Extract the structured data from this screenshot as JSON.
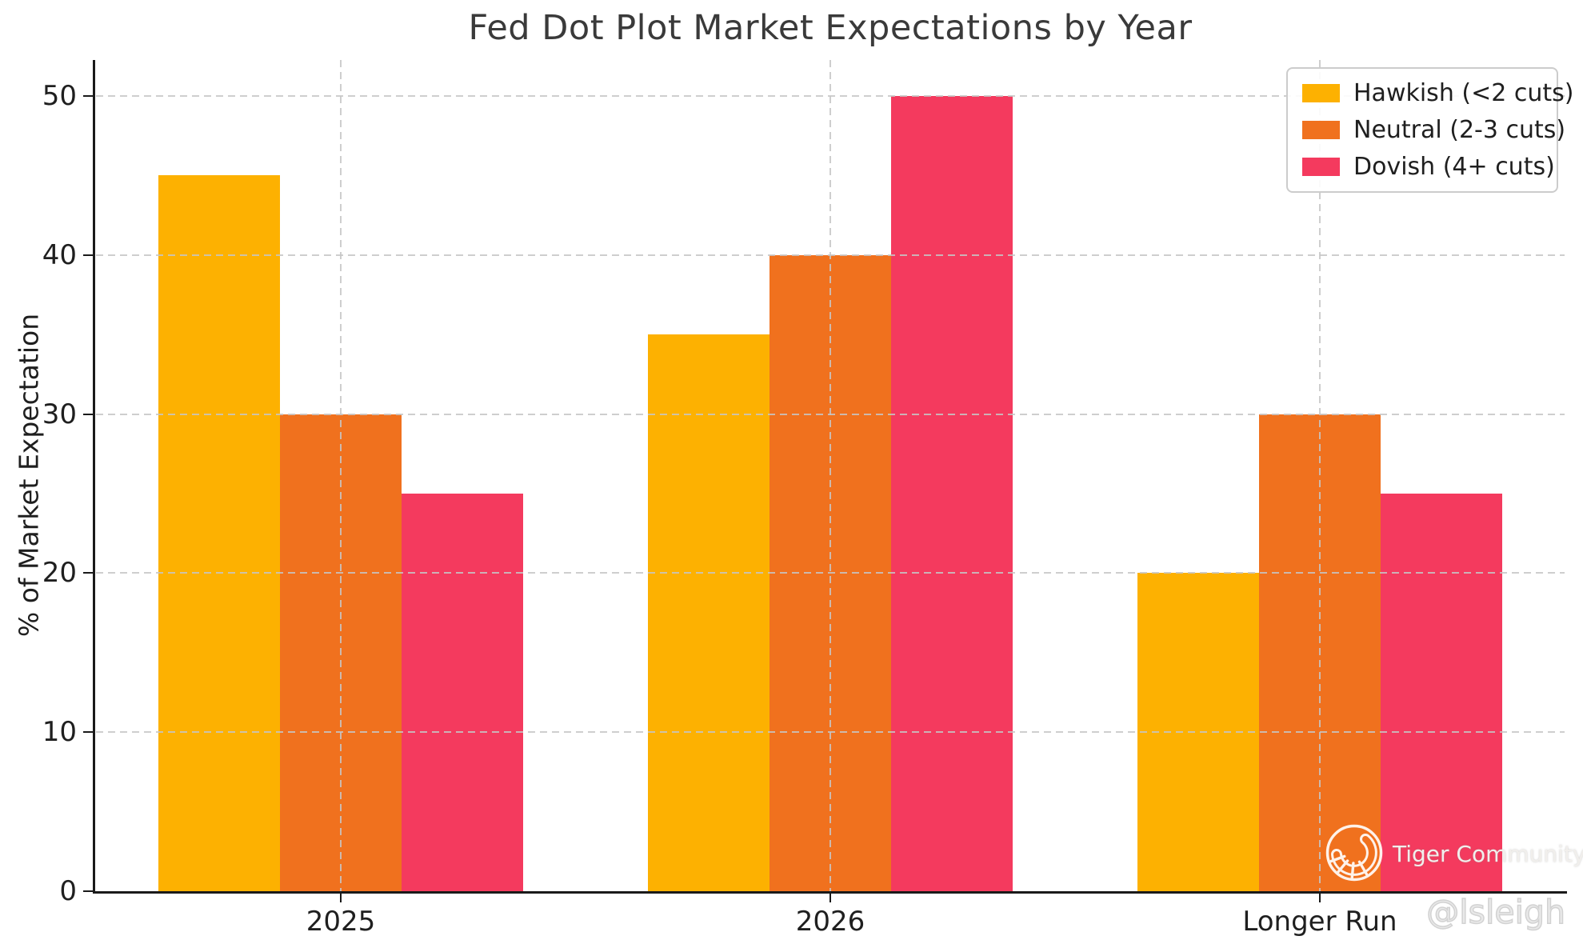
{
  "title": "Fed Dot Plot Market Expectations by Year",
  "axis": {
    "ylabel": "% of Market Expectation"
  },
  "legend": {
    "items": [
      {
        "label": "Hawkish (<2 cuts)",
        "color": "#FDB101"
      },
      {
        "label": "Neutral (2-3 cuts)",
        "color": "#F0711E"
      },
      {
        "label": "Dovish (4+ cuts)",
        "color": "#F43A5E"
      }
    ]
  },
  "watermark": {
    "brand": "Tiger Community",
    "handle": "@lsleigh",
    "logo": "tiger-tail-circle-icon"
  },
  "colors": {
    "hawkish": "#FDB101",
    "neutral": "#F0711E",
    "dovish": "#F43A5E",
    "grid": "#c6c6c6",
    "axis": "#1a1a1a",
    "text": "#1f1f1f",
    "title_text": "#3a3a3a",
    "background": "#ffffff"
  },
  "chart_data": {
    "type": "bar",
    "title": "Fed Dot Plot Market Expectations by Year",
    "categories": [
      "2025",
      "2026",
      "Longer Run"
    ],
    "series": [
      {
        "name": "Hawkish (<2 cuts)",
        "key": "hawkish",
        "color": "#FDB101",
        "values": [
          45,
          35,
          20
        ]
      },
      {
        "name": "Neutral (2-3 cuts)",
        "key": "neutral",
        "color": "#F0711E",
        "values": [
          30,
          40,
          30
        ]
      },
      {
        "name": "Dovish (4+ cuts)",
        "key": "dovish",
        "color": "#F43A5E",
        "values": [
          25,
          50,
          25
        ]
      }
    ],
    "xlabel": "",
    "ylabel": "% of Market Expectation",
    "ylim": [
      0,
      52.25
    ],
    "yticks": [
      0,
      10,
      20,
      30,
      40,
      50
    ],
    "grid": true,
    "grid_style": "dashed",
    "legend_position": "upper-right",
    "bars_per_group": 3
  }
}
